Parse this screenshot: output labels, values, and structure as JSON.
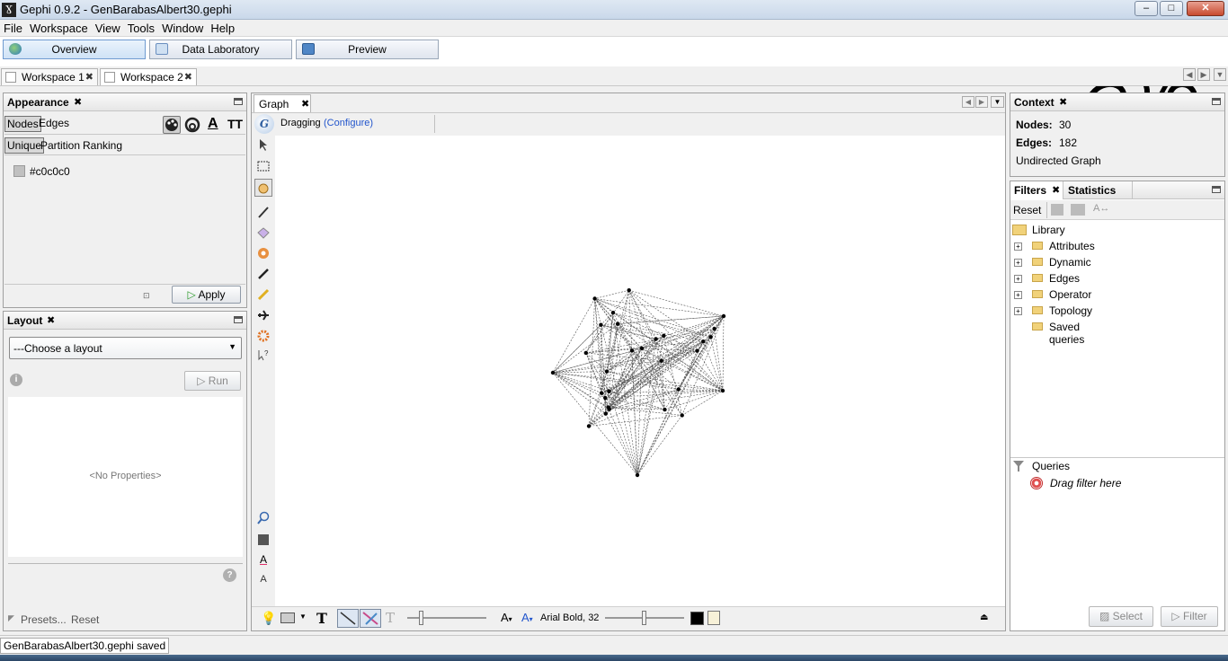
{
  "window": {
    "title": "Gephi 0.9.2 - GenBarabasAlbert30.gephi",
    "app_icon_glyph": "Ɣ",
    "minimize_glyph": "–",
    "maximize_glyph": "□",
    "close_glyph": "✕"
  },
  "menu": [
    "File",
    "Workspace",
    "View",
    "Tools",
    "Window",
    "Help"
  ],
  "modes": [
    {
      "label": "Overview",
      "icon": "globe-icon",
      "active": true
    },
    {
      "label": "Data Laboratory",
      "icon": "table-icon",
      "active": false
    },
    {
      "label": "Preview",
      "icon": "monitor-icon",
      "active": false
    }
  ],
  "workspace_tabs": [
    "Workspace 1",
    "Workspace 2"
  ],
  "appearance": {
    "title": "Appearance",
    "target_tabs": [
      "Nodes",
      "Edges"
    ],
    "mode_tabs": [
      "Unique",
      "Partition",
      "Ranking"
    ],
    "color_value": "#c0c0c0",
    "apply_label": "Apply"
  },
  "layout": {
    "title": "Layout",
    "select_value": "---Choose a layout",
    "run_label": "Run",
    "no_properties": "<No Properties>",
    "presets_label": "Presets...",
    "reset_label": "Reset"
  },
  "graph": {
    "tab_label": "Graph",
    "mode_label": "Dragging",
    "configure_label": "(Configure)",
    "font_label": "Arial Bold, 32",
    "label_color": "#000000",
    "node_count": 30,
    "edge_count": 182
  },
  "context": {
    "title": "Context",
    "nodes_label": "Nodes:",
    "nodes_value": "30",
    "edges_label": "Edges:",
    "edges_value": "182",
    "graph_type": "Undirected Graph"
  },
  "filters": {
    "tabs": [
      "Filters",
      "Statistics"
    ],
    "reset_label": "Reset",
    "library_label": "Library",
    "tree": [
      "Attributes",
      "Dynamic",
      "Edges",
      "Operator",
      "Topology",
      "Saved queries"
    ],
    "queries_label": "Queries",
    "drop_hint": "Drag filter here",
    "select_label": "Select",
    "filter_label": "Filter"
  },
  "status": "GenBarabasAlbert30.gephi saved"
}
